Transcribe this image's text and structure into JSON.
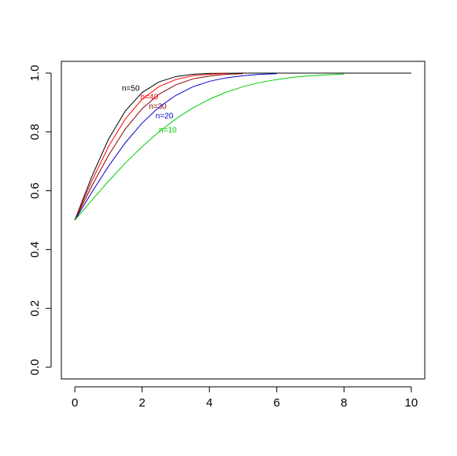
{
  "chart_data": {
    "type": "line",
    "series": [
      {
        "name": "n=50",
        "color": "#000000",
        "x": [
          0,
          0.5,
          1,
          1.5,
          2,
          2.5,
          3,
          3.5,
          4,
          5,
          10
        ],
        "values": [
          0.5,
          0.647,
          0.775,
          0.871,
          0.934,
          0.97,
          0.988,
          0.996,
          0.999,
          1.0,
          1.0
        ]
      },
      {
        "name": "n=40",
        "color": "#ff0000",
        "x": [
          0,
          0.5,
          1,
          1.5,
          2,
          2.5,
          3,
          3.5,
          4,
          4.5
        ],
        "values": [
          0.5,
          0.632,
          0.75,
          0.844,
          0.911,
          0.954,
          0.978,
          0.991,
          0.996,
          0.999
        ]
      },
      {
        "name": "n=30",
        "color": "#8b0000",
        "x": [
          0,
          0.5,
          1,
          1.5,
          2,
          2.5,
          3,
          3.5,
          4,
          4.5,
          5
        ],
        "values": [
          0.5,
          0.615,
          0.72,
          0.81,
          0.879,
          0.928,
          0.96,
          0.98,
          0.99,
          0.996,
          0.998
        ]
      },
      {
        "name": "n=20",
        "color": "#0000cd",
        "x": [
          0,
          0.5,
          1,
          1.5,
          2,
          2.5,
          3,
          3.5,
          4,
          4.5,
          5,
          5.5,
          6
        ],
        "values": [
          0.5,
          0.594,
          0.683,
          0.763,
          0.83,
          0.884,
          0.924,
          0.953,
          0.972,
          0.984,
          0.991,
          0.996,
          0.998
        ]
      },
      {
        "name": "n=10",
        "color": "#00cc00",
        "x": [
          0,
          0.5,
          1,
          1.5,
          2,
          2.5,
          3,
          3.5,
          4,
          4.5,
          5,
          5.5,
          6,
          6.5,
          7,
          7.5,
          8
        ],
        "values": [
          0.5,
          0.567,
          0.632,
          0.694,
          0.75,
          0.8,
          0.844,
          0.881,
          0.911,
          0.935,
          0.954,
          0.968,
          0.978,
          0.986,
          0.991,
          0.994,
          0.997
        ]
      }
    ],
    "xlim": [
      -0.4,
      10.4
    ],
    "ylim": [
      -0.04,
      1.04
    ],
    "xticks": [
      0,
      2,
      4,
      6,
      8,
      10
    ],
    "yticks": [
      {
        "value": 0,
        "label": "0.0"
      },
      {
        "value": 0.2,
        "label": "0.2"
      },
      {
        "value": 0.4,
        "label": "0.4"
      },
      {
        "value": 0.6,
        "label": "0.6"
      },
      {
        "value": 0.8,
        "label": "0.8"
      },
      {
        "value": 1,
        "label": "1.0"
      }
    ]
  }
}
